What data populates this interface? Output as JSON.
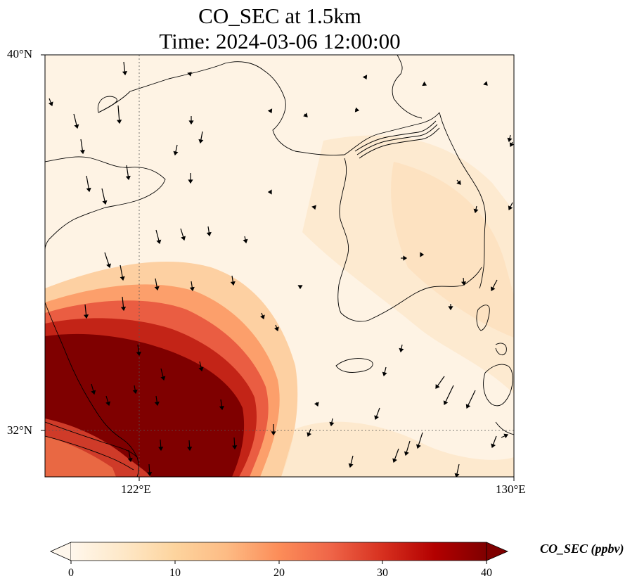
{
  "title": {
    "line1": "CO_SEC at 1.5km",
    "line2": "Time: 2024-03-06 12:00:00"
  },
  "map": {
    "lat_labels": [
      "40°N",
      "32°N"
    ],
    "lon_labels": [
      "122°E",
      "130°E"
    ],
    "extent": {
      "lon_min": 120,
      "lon_max": 130,
      "lat_min": 31,
      "lat_max": 40
    },
    "gridlines": {
      "lon": [
        122
      ],
      "lat": [
        32
      ],
      "style": "dotted"
    },
    "field": "CO_SEC",
    "level": "1.5km",
    "description_hidden": "filled color field with wind vectors; high values (>=40 ppbv) in southwest corner over eastern China, low values over Korea and Yellow Sea"
  },
  "colorbar": {
    "label": "CO_SEC (ppbv)",
    "ticks": [
      "0",
      "10",
      "20",
      "30",
      "40"
    ],
    "min": 0,
    "max": 40,
    "colormap": "OrRd",
    "extend": "both",
    "colors": [
      "#fff7ec",
      "#fee8c8",
      "#fdd49e",
      "#fdbb84",
      "#fc8d59",
      "#ef6548",
      "#d7301f",
      "#b30000",
      "#7f0000"
    ]
  }
}
